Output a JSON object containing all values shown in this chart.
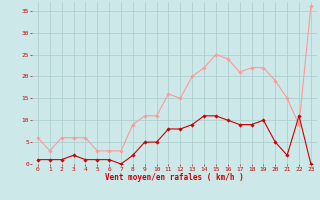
{
  "hours": [
    0,
    1,
    2,
    3,
    4,
    5,
    6,
    7,
    8,
    9,
    10,
    11,
    12,
    13,
    14,
    15,
    16,
    17,
    18,
    19,
    20,
    21,
    22,
    23
  ],
  "vent_moyen": [
    1,
    1,
    1,
    2,
    1,
    1,
    1,
    0,
    2,
    5,
    5,
    8,
    8,
    9,
    11,
    11,
    10,
    9,
    9,
    10,
    5,
    2,
    11,
    0
  ],
  "en_rafales": [
    6,
    3,
    6,
    6,
    6,
    3,
    3,
    3,
    9,
    11,
    11,
    16,
    15,
    20,
    22,
    25,
    24,
    21,
    22,
    22,
    19,
    15,
    9,
    36
  ],
  "bg_color": "#cce8e8",
  "grid_color": "#aacccc",
  "line_moyen_color": "#cc0000",
  "line_rafales_color": "#ff9999",
  "xlabel": "Vent moyen/en rafales ( km/h )",
  "xlabel_color": "#cc0000",
  "tick_color": "#cc0000",
  "ylim": [
    0,
    37
  ],
  "yticks": [
    0,
    5,
    10,
    15,
    20,
    25,
    30,
    35
  ],
  "xticks": [
    0,
    1,
    2,
    3,
    4,
    5,
    6,
    7,
    8,
    9,
    10,
    11,
    12,
    13,
    14,
    15,
    16,
    17,
    18,
    19,
    20,
    21,
    22,
    23
  ]
}
